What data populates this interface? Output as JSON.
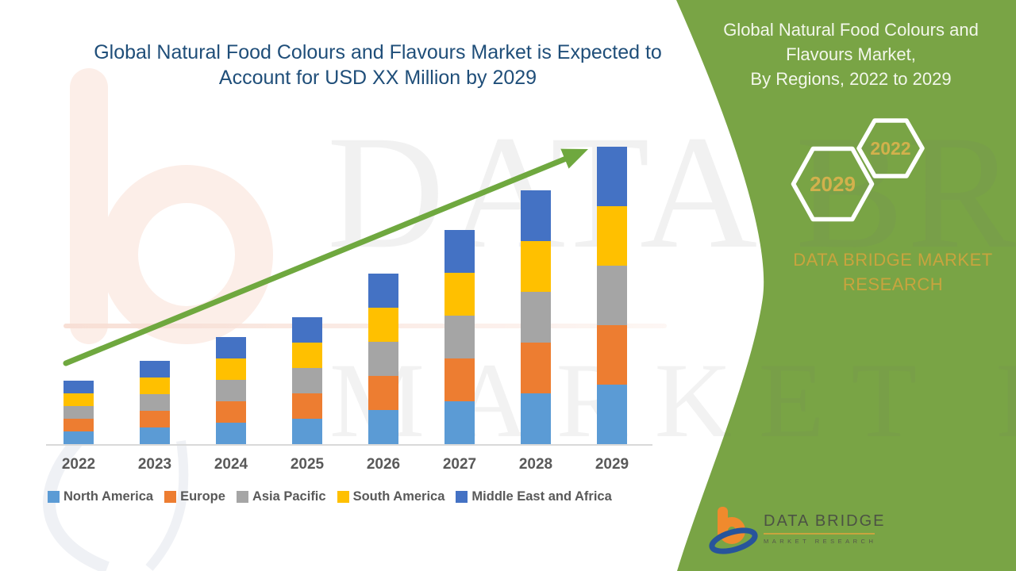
{
  "colors": {
    "title_blue": "#1F4E79",
    "panel_green": "#79A445",
    "gold": "#C8A43E",
    "hex_year_gold": "#D2B14C",
    "axis_line": "#D9D9D9",
    "label_gray": "#595959",
    "arrow_green": "#6FA83F",
    "logo_orange": "#F08A2D",
    "logo_navy": "#27549B"
  },
  "main": {
    "title_line1": "Global Natural Food Colours and Flavours Market is Expected to",
    "title_line2": "Account for USD XX Million by 2029"
  },
  "side_panel": {
    "heading_line1": "Global Natural Food Colours and",
    "heading_line2": "Flavours Market,",
    "heading_line3": "By Regions, 2022 to 2029",
    "hexagons": [
      {
        "label": "2029"
      },
      {
        "label": "2022"
      }
    ],
    "brand_line1": "DATA BRIDGE MARKET",
    "brand_line2": "RESEARCH"
  },
  "watermark": {
    "line1": "DATA BRIDGE",
    "line2": "MARKET RESEARCH"
  },
  "logo": {
    "name_text": "DATA BRIDGE",
    "tagline_text": "MARKET RESEARCH"
  },
  "chart_data": {
    "type": "bar",
    "subtype": "stacked-vertical",
    "title": "Global Natural Food Colours and Flavours Market is Expected to Account for USD XX Million by 2029",
    "xlabel": "",
    "ylabel": "",
    "units": "relative index (actual values shown as USD XX Million, axis unlabeled)",
    "value_axis_visible": false,
    "gridlines": false,
    "legend_position": "bottom",
    "trend_arrow": true,
    "categories": [
      "2022",
      "2023",
      "2024",
      "2025",
      "2026",
      "2027",
      "2028",
      "2029"
    ],
    "series": [
      {
        "name": "North America",
        "color": "#5B9BD5",
        "values": [
          16,
          21,
          27,
          32,
          43,
          54,
          64,
          75
        ]
      },
      {
        "name": "Europe",
        "color": "#ED7D31",
        "values": [
          16,
          21,
          27,
          32,
          43,
          54,
          64,
          75
        ]
      },
      {
        "name": "Asia Pacific",
        "color": "#A5A5A5",
        "values": [
          16,
          21,
          27,
          32,
          43,
          54,
          64,
          75
        ]
      },
      {
        "name": "South America",
        "color": "#FFC000",
        "values": [
          16,
          21,
          27,
          32,
          43,
          54,
          64,
          75
        ]
      },
      {
        "name": "Middle East and Africa",
        "color": "#4472C4",
        "values": [
          16,
          21,
          27,
          32,
          43,
          54,
          64,
          75
        ]
      }
    ],
    "stack_totals": [
      80,
      105,
      135,
      160,
      215,
      270,
      320,
      375
    ]
  }
}
